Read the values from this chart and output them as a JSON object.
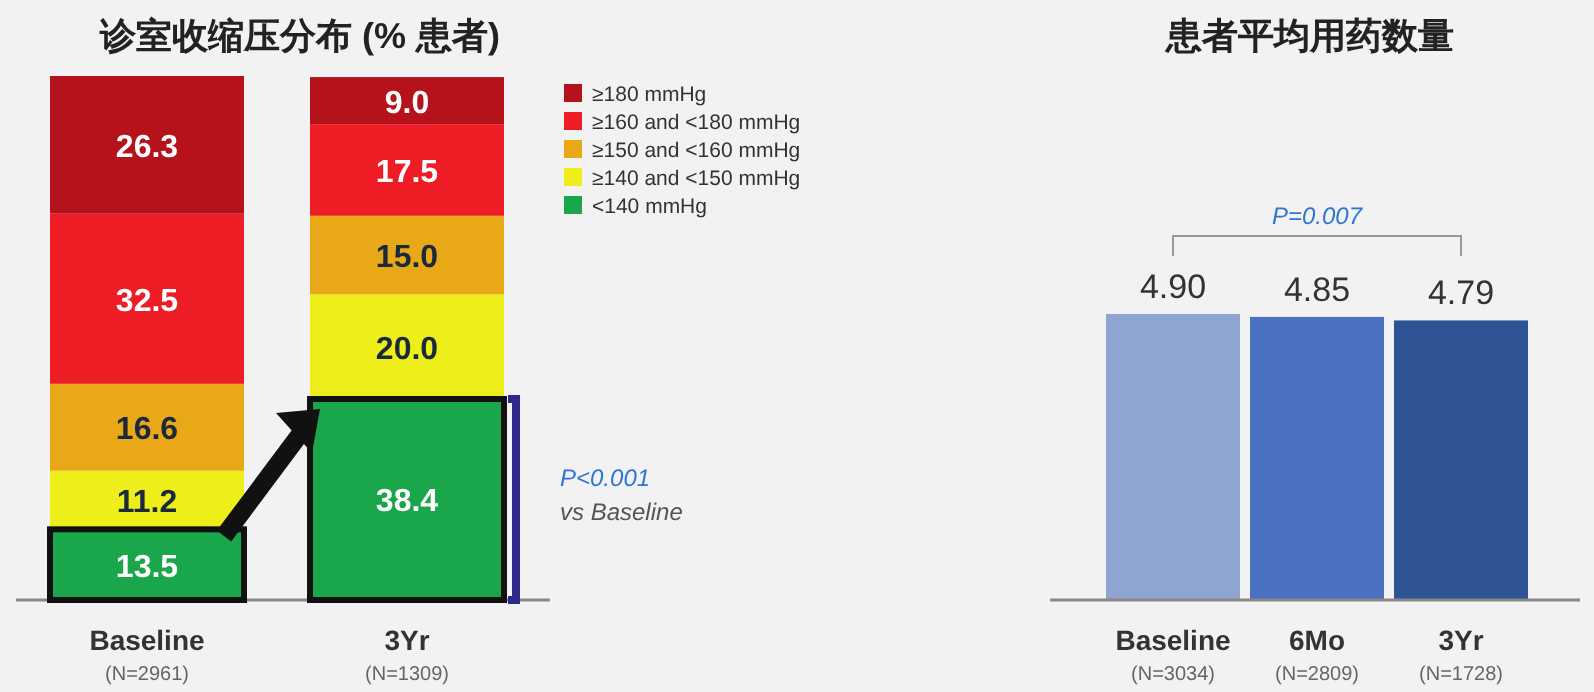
{
  "chart_data": [
    {
      "type": "bar",
      "title": "诊室收缩压分布 (% 患者)",
      "categories": [
        "Baseline",
        "3Yr"
      ],
      "stacked": true,
      "legend": "right",
      "series": [
        {
          "name": "<140 mmHg",
          "color": "#1aa64a",
          "values": [
            13.5,
            38.4
          ],
          "value_labels": [
            "13.5",
            "38.4"
          ]
        },
        {
          "name": "≥140 and <150 mmHg",
          "color": "#eeee1a",
          "values": [
            11.2,
            20.0
          ],
          "value_labels": [
            "11.2",
            "20.0"
          ]
        },
        {
          "name": "≥150 and <160 mmHg",
          "color": "#e8a818",
          "values": [
            16.6,
            15.0
          ],
          "value_labels": [
            "16.6",
            "15.0"
          ]
        },
        {
          "name": "≥160 and <180 mmHg",
          "color": "#ee1c25",
          "values": [
            32.5,
            17.5
          ],
          "value_labels": [
            "32.5",
            "17.5"
          ]
        },
        {
          "name": "≥180 mmHg",
          "color": "#b5121b",
          "values": [
            26.3,
            9.0
          ],
          "value_labels": [
            "26.3",
            "9.0"
          ]
        }
      ],
      "annotations": [
        "(N=2961)",
        "(N=1309)",
        "P<0.001",
        "vs Baseline"
      ]
    },
    {
      "type": "bar",
      "title": "患者平均用药数量",
      "categories": [
        "Baseline",
        "6Mo",
        "3Yr"
      ],
      "colors": [
        "#8ea5d2",
        "#4a72c0",
        "#2f5496"
      ],
      "values": [
        4.9,
        4.85,
        4.79
      ],
      "value_labels": [
        "4.90",
        "4.85",
        "4.79"
      ],
      "annotations": [
        "(N=3034)",
        "(N=2809)",
        "(N=1728)",
        "P=0.007"
      ]
    }
  ]
}
